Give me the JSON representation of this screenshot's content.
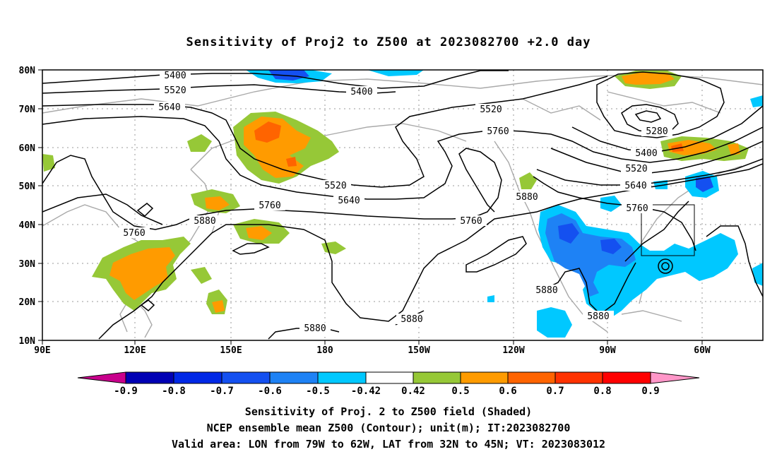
{
  "title": "Sensitivity of Proj2 to Z500 at 2023082700 +2.0 day",
  "lat_labels": [
    "80N",
    "70N",
    "60N",
    "50N",
    "40N",
    "30N",
    "20N",
    "10N"
  ],
  "lon_labels": [
    "90E",
    "120E",
    "150E",
    "180",
    "150W",
    "120W",
    "90W",
    "60W"
  ],
  "contour_labels": [
    "5400",
    "5520",
    "5640",
    "5400",
    "5520",
    "5760",
    "5280",
    "5400",
    "5520",
    "5640",
    "5760",
    "5520",
    "5640",
    "5760",
    "5880",
    "5760",
    "5880",
    "5760",
    "5880",
    "5880",
    "5880",
    "5880"
  ],
  "colorbar": {
    "labels": [
      "-0.9",
      "-0.8",
      "-0.7",
      "-0.6",
      "-0.5",
      "-0.42",
      "0.42",
      "0.5",
      "0.6",
      "0.7",
      "0.8",
      "0.9"
    ],
    "colors": [
      "#c8008c",
      "#0000b4",
      "#0028e6",
      "#1450f0",
      "#1e82f5",
      "#00c8ff",
      "#ffffff",
      "#96c837",
      "#ff9b00",
      "#ff6400",
      "#ff3200",
      "#ff0000",
      "#ff96c8"
    ]
  },
  "captions": [
    "Sensitivity of Proj. 2 to Z500 field (Shaded)",
    "NCEP ensemble mean Z500 (Contour); unit(m); IT:2023082700",
    "Valid area: LON from 79W to 62W, LAT from 32N to 45N; VT: 2023083012"
  ]
}
